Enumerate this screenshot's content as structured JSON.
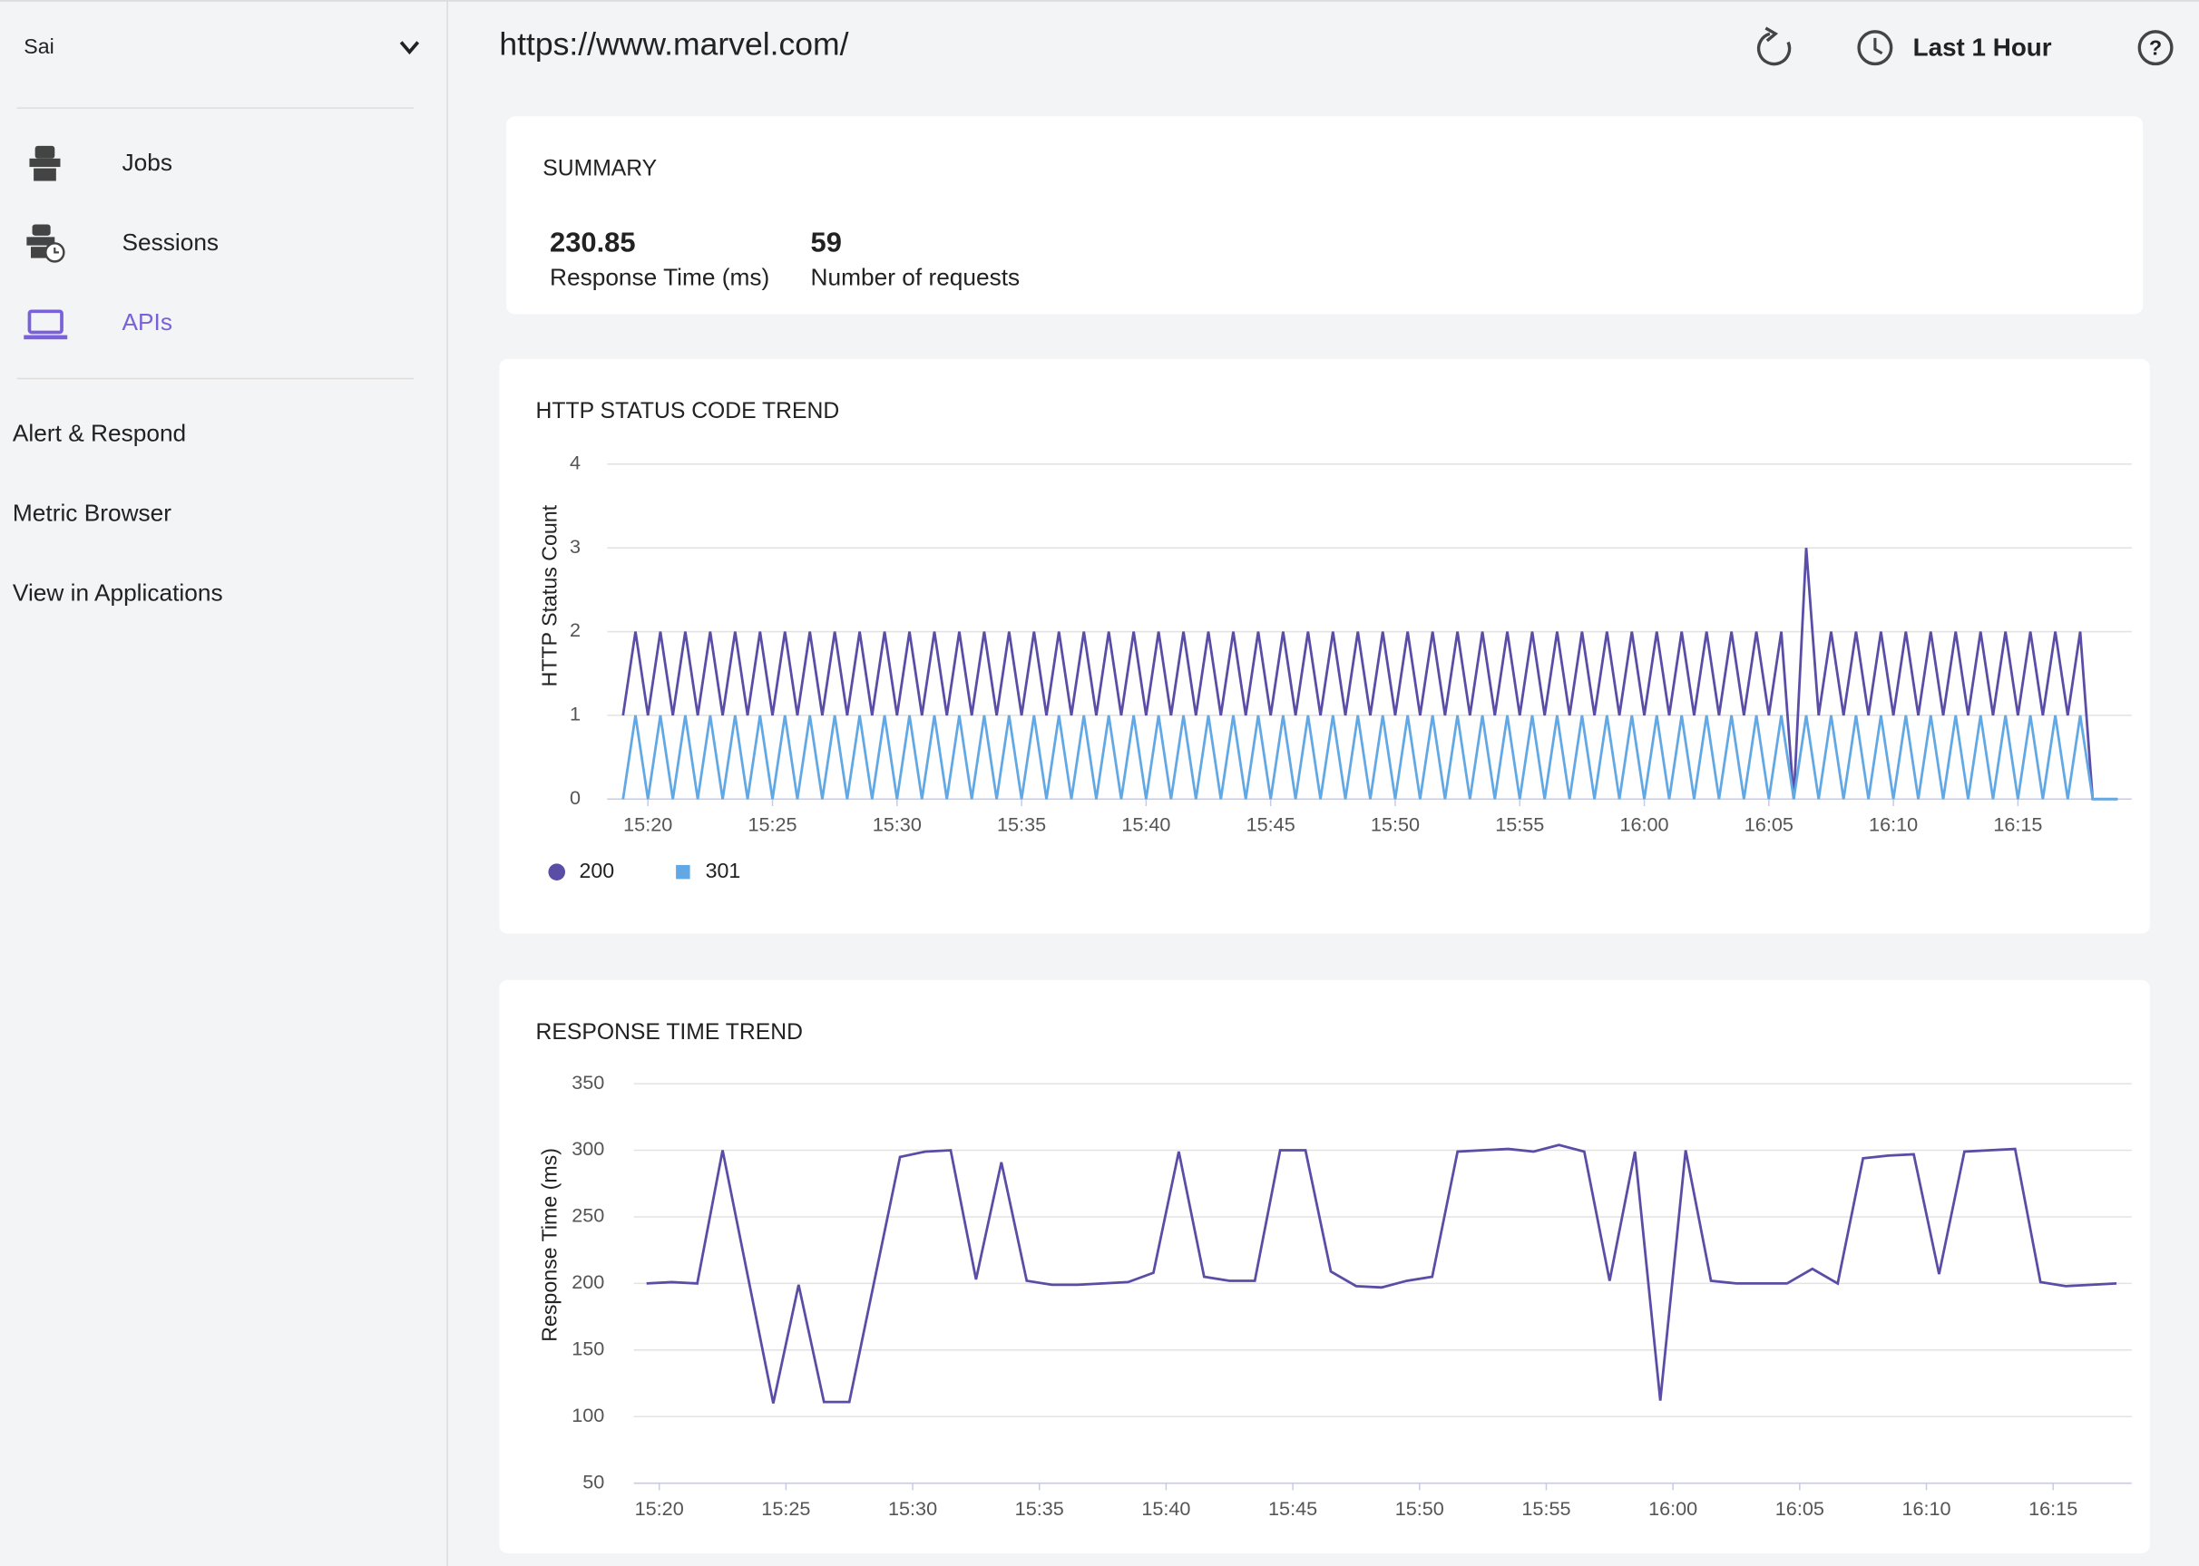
{
  "sidebar": {
    "user": "Sai",
    "nav": [
      "Jobs",
      "Sessions",
      "APIs"
    ],
    "links": [
      "Alert & Respond",
      "Metric Browser",
      "View in Applications"
    ]
  },
  "header": {
    "url": "https://www.marvel.com/",
    "time_range": "Last 1 Hour"
  },
  "summary": {
    "title": "SUMMARY",
    "metrics": [
      {
        "value": 230.85,
        "label": "Response Time (ms)"
      },
      {
        "value": 59,
        "label": "Number of requests"
      }
    ]
  },
  "chart_data": [
    {
      "type": "line",
      "title": "HTTP STATUS CODE TREND",
      "y_label": "HTTP Status Count",
      "x": [
        "15:19:00",
        "15:19:30",
        "15:20:00",
        "15:20:30",
        "15:21:00",
        "15:21:30",
        "15:22:00",
        "15:22:30",
        "15:23:00",
        "15:23:30",
        "15:24:00",
        "15:24:30",
        "15:25:00",
        "15:25:30",
        "15:26:00",
        "15:26:30",
        "15:27:00",
        "15:27:30",
        "15:28:00",
        "15:28:30",
        "15:29:00",
        "15:29:30",
        "15:30:00",
        "15:30:30",
        "15:31:00",
        "15:31:30",
        "15:32:00",
        "15:32:30",
        "15:33:00",
        "15:33:30",
        "15:34:00",
        "15:34:30",
        "15:35:00",
        "15:35:30",
        "15:36:00",
        "15:36:30",
        "15:37:00",
        "15:37:30",
        "15:38:00",
        "15:38:30",
        "15:39:00",
        "15:39:30",
        "15:40:00",
        "15:40:30",
        "15:41:00",
        "15:41:30",
        "15:42:00",
        "15:42:30",
        "15:43:00",
        "15:43:30",
        "15:44:00",
        "15:44:30",
        "15:45:00",
        "15:45:30",
        "15:46:00",
        "15:46:30",
        "15:47:00",
        "15:47:30",
        "15:48:00",
        "15:48:30",
        "15:49:00",
        "15:49:30",
        "15:50:00",
        "15:50:30",
        "15:51:00",
        "15:51:30",
        "15:52:00",
        "15:52:30",
        "15:53:00",
        "15:53:30",
        "15:54:00",
        "15:54:30",
        "15:55:00",
        "15:55:30",
        "15:56:00",
        "15:56:30",
        "15:57:00",
        "15:57:30",
        "15:58:00",
        "15:58:30",
        "15:59:00",
        "15:59:30",
        "16:00:00",
        "16:00:30",
        "16:01:00",
        "16:01:30",
        "16:02:00",
        "16:02:30",
        "16:03:00",
        "16:03:30",
        "16:04:00",
        "16:04:30",
        "16:05:00",
        "16:05:30",
        "16:06:00",
        "16:06:30",
        "16:07:00",
        "16:07:30",
        "16:08:00",
        "16:08:30",
        "16:09:00",
        "16:09:30",
        "16:10:00",
        "16:10:30",
        "16:11:00",
        "16:11:30",
        "16:12:00",
        "16:12:30",
        "16:13:00",
        "16:13:30",
        "16:14:00",
        "16:14:30",
        "16:15:00",
        "16:15:30",
        "16:16:00",
        "16:16:30",
        "16:17:00",
        "16:17:30",
        "16:18:00",
        "16:18:30",
        "16:19:00"
      ],
      "series": [
        {
          "name": "200",
          "color": "#5a4da6",
          "values": [
            1,
            2,
            1,
            2,
            1,
            2,
            1,
            2,
            1,
            2,
            1,
            2,
            1,
            2,
            1,
            2,
            1,
            2,
            1,
            2,
            1,
            2,
            1,
            2,
            1,
            2,
            1,
            2,
            1,
            2,
            1,
            2,
            1,
            2,
            1,
            2,
            1,
            2,
            1,
            2,
            1,
            2,
            1,
            2,
            1,
            2,
            1,
            2,
            1,
            2,
            1,
            2,
            1,
            2,
            1,
            2,
            1,
            2,
            1,
            2,
            1,
            2,
            1,
            2,
            1,
            2,
            1,
            2,
            1,
            2,
            1,
            2,
            1,
            2,
            1,
            2,
            1,
            2,
            1,
            2,
            1,
            2,
            1,
            2,
            1,
            2,
            1,
            2,
            1,
            2,
            1,
            2,
            1,
            2,
            0,
            3,
            1,
            2,
            1,
            2,
            1,
            2,
            1,
            2,
            1,
            2,
            1,
            2,
            1,
            2,
            1,
            2,
            1,
            2,
            1,
            2,
            1,
            2,
            0,
            0,
            0
          ]
        },
        {
          "name": "301",
          "color": "#62a8e5",
          "values": [
            0,
            1,
            0,
            1,
            0,
            1,
            0,
            1,
            0,
            1,
            0,
            1,
            0,
            1,
            0,
            1,
            0,
            1,
            0,
            1,
            0,
            1,
            0,
            1,
            0,
            1,
            0,
            1,
            0,
            1,
            0,
            1,
            0,
            1,
            0,
            1,
            0,
            1,
            0,
            1,
            0,
            1,
            0,
            1,
            0,
            1,
            0,
            1,
            0,
            1,
            0,
            1,
            0,
            1,
            0,
            1,
            0,
            1,
            0,
            1,
            0,
            1,
            0,
            1,
            0,
            1,
            0,
            1,
            0,
            1,
            0,
            1,
            0,
            1,
            0,
            1,
            0,
            1,
            0,
            1,
            0,
            1,
            0,
            1,
            0,
            1,
            0,
            1,
            0,
            1,
            0,
            1,
            0,
            1,
            0,
            1,
            0,
            1,
            0,
            1,
            0,
            1,
            0,
            1,
            0,
            1,
            0,
            1,
            0,
            1,
            0,
            1,
            0,
            1,
            0,
            1,
            0,
            1,
            0,
            0,
            0
          ]
        }
      ],
      "xlim": [
        "15:18:22",
        "16:19:34"
      ],
      "xticks": [
        "15:20",
        "15:25",
        "15:30",
        "15:35",
        "15:40",
        "15:45",
        "15:50",
        "15:55",
        "16:00",
        "16:05",
        "16:10",
        "16:15"
      ],
      "ylim": [
        0,
        4
      ],
      "yticks": [
        0,
        1,
        2,
        3,
        4
      ],
      "grid": true,
      "legend": "bottom-left"
    },
    {
      "type": "line",
      "title": "RESPONSE TIME TREND",
      "y_label": "Response Time (ms)",
      "x": [
        "15:19:30",
        "15:20:30",
        "15:21:30",
        "15:22:30",
        "15:23:30",
        "15:24:30",
        "15:25:30",
        "15:26:30",
        "15:27:30",
        "15:28:30",
        "15:29:30",
        "15:30:30",
        "15:31:30",
        "15:32:30",
        "15:33:30",
        "15:34:30",
        "15:35:30",
        "15:36:30",
        "15:37:30",
        "15:38:30",
        "15:39:30",
        "15:40:30",
        "15:41:30",
        "15:42:30",
        "15:43:30",
        "15:44:30",
        "15:45:30",
        "15:46:30",
        "15:47:30",
        "15:48:30",
        "15:49:30",
        "15:50:30",
        "15:51:30",
        "15:52:30",
        "15:53:30",
        "15:54:30",
        "15:55:30",
        "15:56:30",
        "15:57:30",
        "15:58:30",
        "15:59:30",
        "16:00:30",
        "16:01:30",
        "16:02:30",
        "16:03:30",
        "16:04:30",
        "16:05:30",
        "16:06:30",
        "16:07:30",
        "16:08:30",
        "16:09:30",
        "16:10:30",
        "16:11:30",
        "16:12:30",
        "16:13:30",
        "16:14:30",
        "16:15:30",
        "16:16:30",
        "16:17:30"
      ],
      "values": [
        200,
        201,
        200,
        300,
        205,
        110,
        199,
        111,
        111,
        203,
        295,
        299,
        300,
        203,
        291,
        202,
        199,
        199,
        200,
        201,
        208,
        299,
        205,
        202,
        202,
        300,
        300,
        209,
        198,
        197,
        202,
        205,
        299,
        300,
        301,
        299,
        304,
        299,
        202,
        299,
        112,
        300,
        202,
        200,
        200,
        200,
        211,
        200,
        294,
        296,
        297,
        207,
        299,
        300,
        301,
        201,
        198,
        199,
        200
      ],
      "color": "#5a4da6",
      "xlim": [
        "15:19:00",
        "16:18:06"
      ],
      "xticks": [
        "15:20",
        "15:25",
        "15:30",
        "15:35",
        "15:40",
        "15:45",
        "15:50",
        "15:55",
        "16:00",
        "16:05",
        "16:10",
        "16:15"
      ],
      "ylim": [
        50,
        350
      ],
      "yticks": [
        50,
        100,
        150,
        200,
        250,
        300,
        350
      ],
      "grid": true
    }
  ]
}
